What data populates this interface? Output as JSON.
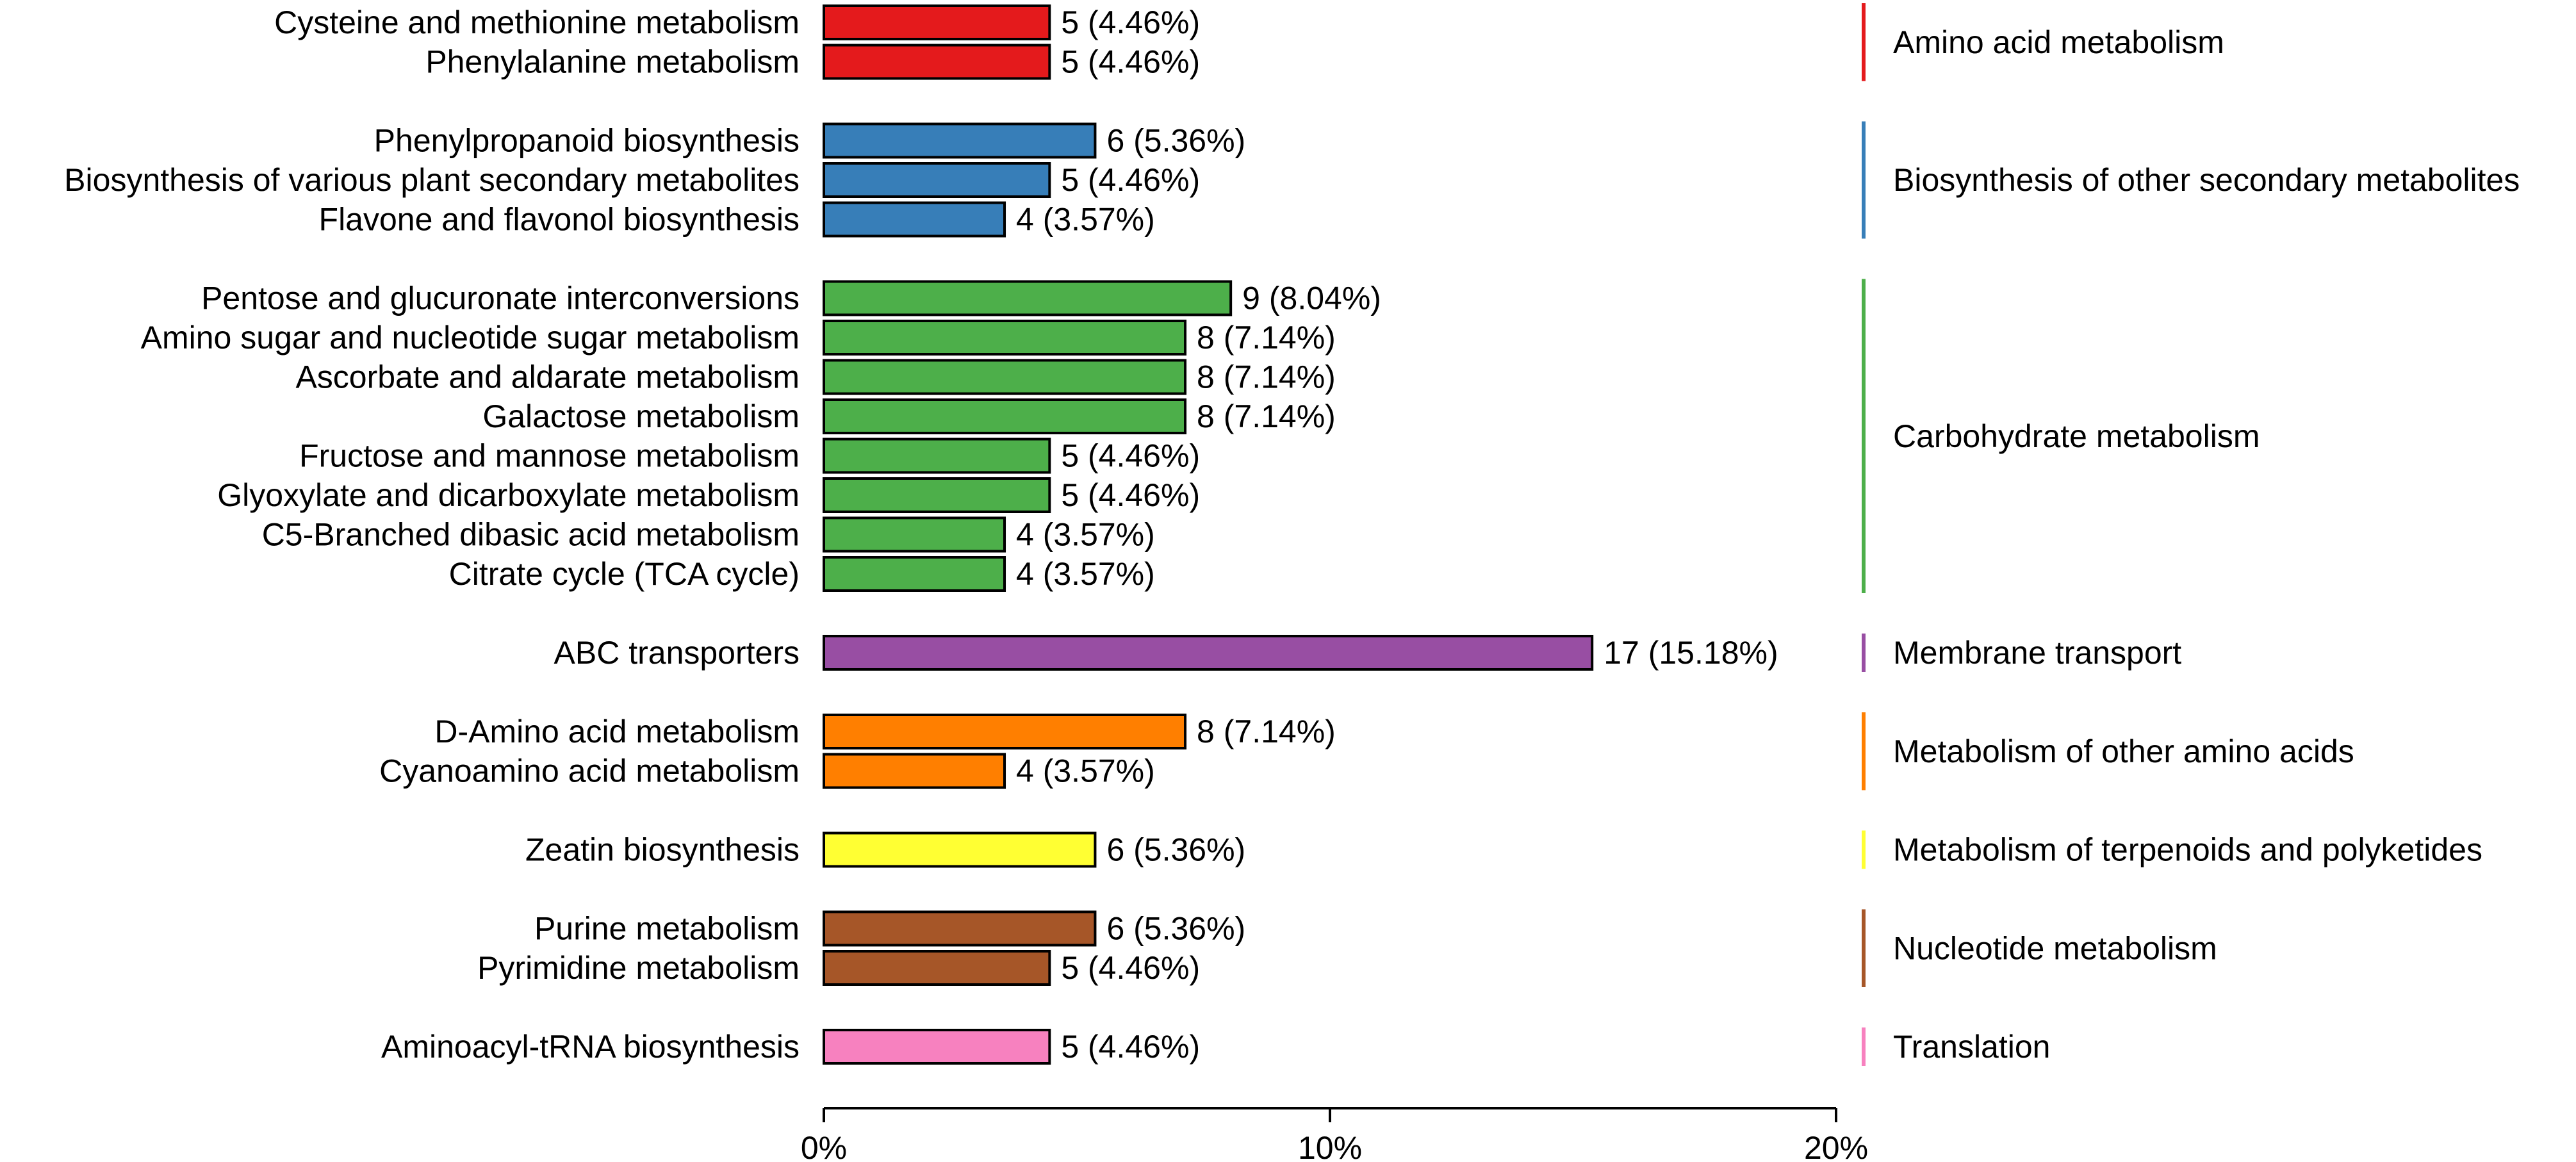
{
  "chart_data": {
    "type": "bar",
    "orientation": "horizontal",
    "title": "",
    "xlabel": "",
    "ylabel": "",
    "xlim": [
      0,
      20
    ],
    "grid": false,
    "x_ticks": [
      {
        "value": 0,
        "label": "0%"
      },
      {
        "value": 10,
        "label": "10%"
      },
      {
        "value": 20,
        "label": "20%"
      }
    ],
    "groups": [
      {
        "name": "Amino acid metabolism",
        "color": "#e41a1c",
        "items": [
          {
            "label": "Cysteine and methionine metabolism",
            "count": 5,
            "value": 4.46,
            "value_label": "5 (4.46%)"
          },
          {
            "label": "Phenylalanine metabolism",
            "count": 5,
            "value": 4.46,
            "value_label": "5 (4.46%)"
          }
        ]
      },
      {
        "name": "Biosynthesis of other secondary metabolites",
        "color": "#377eb8",
        "items": [
          {
            "label": "Phenylpropanoid biosynthesis",
            "count": 6,
            "value": 5.36,
            "value_label": "6 (5.36%)"
          },
          {
            "label": "Biosynthesis of various plant secondary metabolites",
            "count": 5,
            "value": 4.46,
            "value_label": "5 (4.46%)"
          },
          {
            "label": "Flavone and flavonol biosynthesis",
            "count": 4,
            "value": 3.57,
            "value_label": "4 (3.57%)"
          }
        ]
      },
      {
        "name": "Carbohydrate metabolism",
        "color": "#4daf4a",
        "items": [
          {
            "label": "Pentose and glucuronate interconversions",
            "count": 9,
            "value": 8.04,
            "value_label": "9 (8.04%)"
          },
          {
            "label": "Amino sugar and nucleotide sugar metabolism",
            "count": 8,
            "value": 7.14,
            "value_label": "8 (7.14%)"
          },
          {
            "label": "Ascorbate and aldarate metabolism",
            "count": 8,
            "value": 7.14,
            "value_label": "8 (7.14%)"
          },
          {
            "label": "Galactose metabolism",
            "count": 8,
            "value": 7.14,
            "value_label": "8 (7.14%)"
          },
          {
            "label": "Fructose and mannose metabolism",
            "count": 5,
            "value": 4.46,
            "value_label": "5 (4.46%)"
          },
          {
            "label": "Glyoxylate and dicarboxylate metabolism",
            "count": 5,
            "value": 4.46,
            "value_label": "5 (4.46%)"
          },
          {
            "label": "C5-Branched dibasic acid metabolism",
            "count": 4,
            "value": 3.57,
            "value_label": "4 (3.57%)"
          },
          {
            "label": "Citrate cycle (TCA cycle)",
            "count": 4,
            "value": 3.57,
            "value_label": "4 (3.57%)"
          }
        ]
      },
      {
        "name": "Membrane transport",
        "color": "#984ea3",
        "items": [
          {
            "label": "ABC transporters",
            "count": 17,
            "value": 15.18,
            "value_label": "17 (15.18%)"
          }
        ]
      },
      {
        "name": "Metabolism of other amino acids",
        "color": "#ff7f00",
        "items": [
          {
            "label": "D-Amino acid metabolism",
            "count": 8,
            "value": 7.14,
            "value_label": "8 (7.14%)"
          },
          {
            "label": "Cyanoamino acid metabolism",
            "count": 4,
            "value": 3.57,
            "value_label": "4 (3.57%)"
          }
        ]
      },
      {
        "name": "Metabolism of terpenoids and polyketides",
        "color": "#ffff33",
        "items": [
          {
            "label": "Zeatin biosynthesis",
            "count": 6,
            "value": 5.36,
            "value_label": "6 (5.36%)"
          }
        ]
      },
      {
        "name": "Nucleotide metabolism",
        "color": "#a65628",
        "items": [
          {
            "label": "Purine metabolism",
            "count": 6,
            "value": 5.36,
            "value_label": "6 (5.36%)"
          },
          {
            "label": "Pyrimidine metabolism",
            "count": 5,
            "value": 4.46,
            "value_label": "5 (4.46%)"
          }
        ]
      },
      {
        "name": "Translation",
        "color": "#f781bf",
        "items": [
          {
            "label": "Aminoacyl-tRNA biosynthesis",
            "count": 5,
            "value": 4.46,
            "value_label": "5 (4.46%)"
          }
        ]
      }
    ]
  }
}
